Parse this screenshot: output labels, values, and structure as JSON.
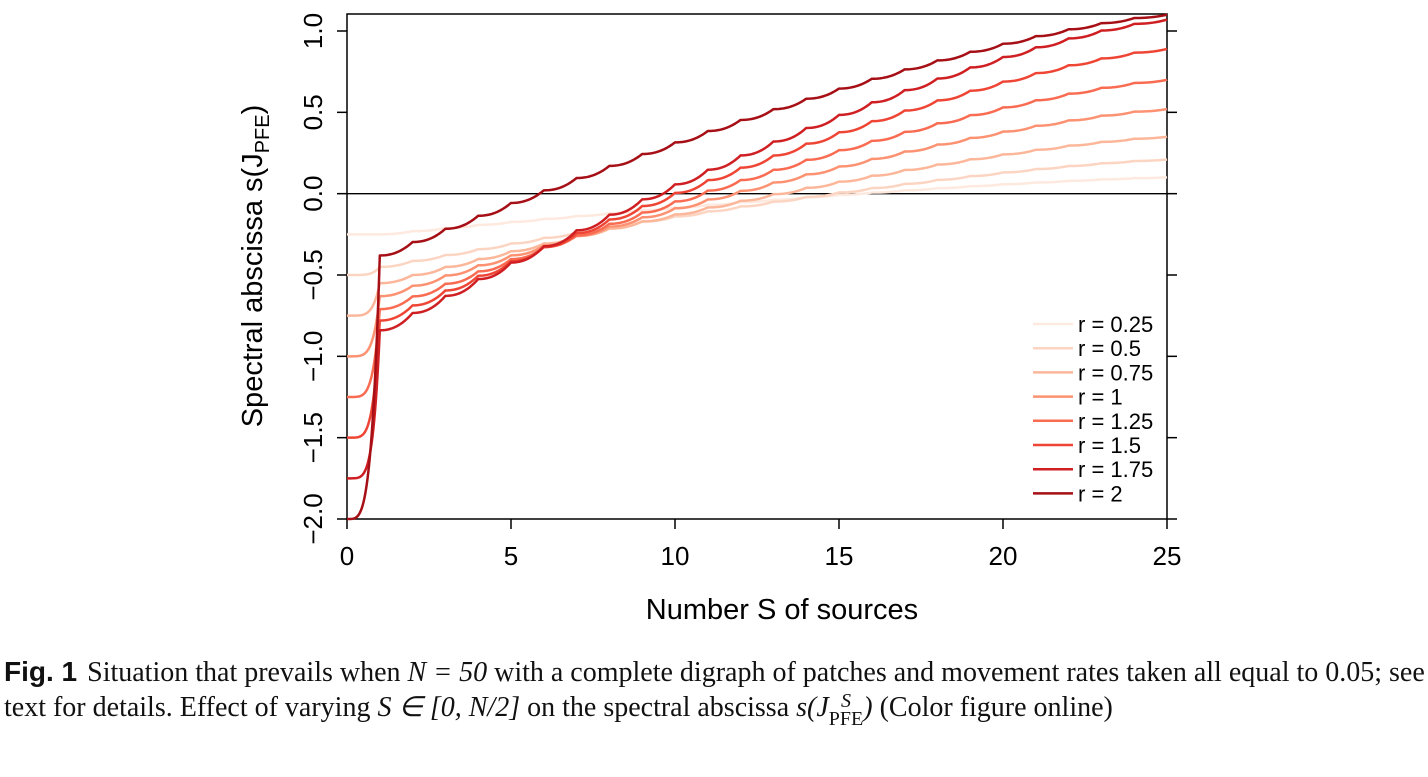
{
  "chart_data": {
    "type": "line",
    "xlabel": "Number S of sources",
    "ylabel_main": "Spectral abscissa s(J",
    "ylabel_sub": "PFE",
    "ylabel_close": ")",
    "xlim": [
      0,
      25
    ],
    "ylim": [
      -2.0,
      1.0
    ],
    "xticks": [
      "0",
      "5",
      "10",
      "15",
      "20",
      "25"
    ],
    "yticks": [
      "−2.0",
      "−1.5",
      "−1.0",
      "−0.5",
      "0.0",
      "0.5",
      "1.0"
    ],
    "reference_line_y": 0,
    "grid": false,
    "legend_position": "bottom-right",
    "series": [
      {
        "name": "r = 0.25",
        "color": "#fee9df",
        "start": -0.25,
        "plateau": -0.25,
        "end": 0.1
      },
      {
        "name": "r = 0.5",
        "color": "#fcd5c2",
        "start": -0.5,
        "plateau": -0.45,
        "end": 0.21
      },
      {
        "name": "r = 0.75",
        "color": "#fcb79a",
        "start": -0.75,
        "plateau": -0.55,
        "end": 0.35
      },
      {
        "name": "r = 1",
        "color": "#fc9272",
        "start": -1.0,
        "plateau": -0.63,
        "end": 0.52
      },
      {
        "name": "r = 1.25",
        "color": "#f96c52",
        "start": -1.25,
        "plateau": -0.71,
        "end": 0.7
      },
      {
        "name": "r = 1.5",
        "color": "#ee4535",
        "start": -1.5,
        "plateau": -0.78,
        "end": 0.89
      },
      {
        "name": "r = 1.75",
        "color": "#cf1f22",
        "start": -1.75,
        "plateau": -0.84,
        "end": 1.07
      },
      {
        "name": "r = 2",
        "color": "#a50f15",
        "start": -2.0,
        "plateau": -0.38,
        "end": 1.1
      }
    ]
  },
  "caption": {
    "label": "Fig. 1",
    "text_1": "Situation that prevails when ",
    "math_1": "N = 50",
    "text_2": " with a complete digraph of patches and movement rates taken all equal to 0.05; see text for details. Effect of varying ",
    "math_2": "S ∈ [0, N/2]",
    "text_3": " on the spectral abscissa ",
    "math_3": "s(J",
    "math_3_sup": "S",
    "math_3_sub": "PFE",
    "math_3_close": ")",
    "text_4": " (Color figure online)"
  }
}
